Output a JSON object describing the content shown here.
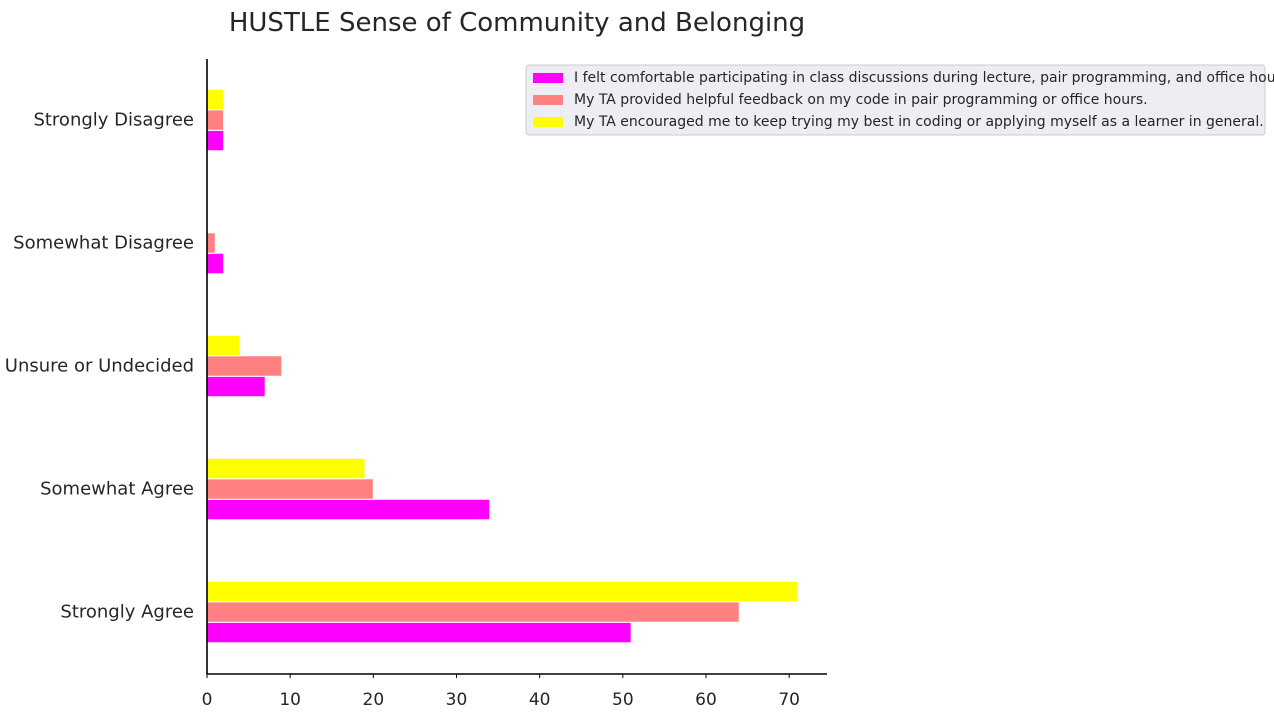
{
  "chart_data": {
    "type": "bar",
    "orientation": "horizontal",
    "title": "HUSTLE Sense of Community and Belonging",
    "xlabel": "",
    "ylabel": "",
    "categories": [
      "Strongly Agree",
      "Somewhat Agree",
      "Unsure or Undecided",
      "Somewhat Disagree",
      "Strongly Disagree"
    ],
    "series": [
      {
        "name": "I felt comfortable participating in class discussions during lecture, pair programming, and office hours.",
        "color": "#ff00ff",
        "values": [
          51,
          34,
          7,
          2,
          2
        ]
      },
      {
        "name": "My TA provided helpful feedback on my code in pair programming or office hours.",
        "color": "#ff8080",
        "values": [
          64,
          20,
          9,
          1,
          2
        ]
      },
      {
        "name": "My TA encouraged me to keep trying my best in coding or applying myself as a learner in general.",
        "color": "#ffff00",
        "values": [
          71,
          19,
          4,
          0,
          2
        ]
      }
    ],
    "xlim": [
      0,
      74.55
    ],
    "xticks": [
      "0",
      "10",
      "20",
      "30",
      "40",
      "50",
      "60",
      "70"
    ],
    "grid": false,
    "legend_position": "top-right"
  }
}
